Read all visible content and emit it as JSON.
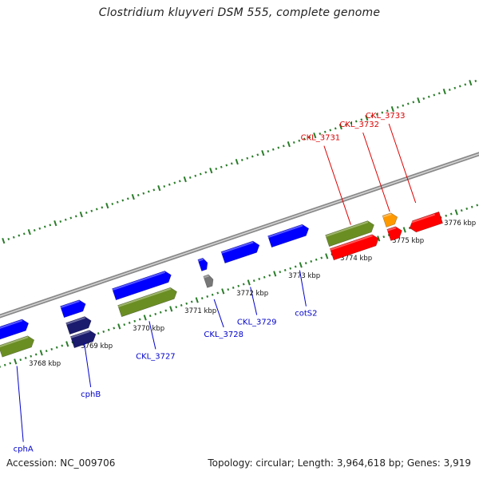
{
  "title": "Clostridium kluyveri DSM 555, complete genome",
  "footer": {
    "accession": "Accession: NC_009706",
    "summary": "Topology: circular; Length: 3,964,618 bp; Genes: 3,919"
  },
  "colors": {
    "forward_cds": "#0000ff",
    "reverse_cds_red": "#ff0000",
    "rna_green": "#6b8e23",
    "orange": "#ff9900",
    "gray": "#777777",
    "navy": "#1a1a6e",
    "tick": "#2a7d2a",
    "label_blue": "#0000cc",
    "label_red": "#dd0000"
  },
  "scale": {
    "unit": "kbp",
    "ticks": [
      {
        "pos": 3768,
        "label": "3768 kbp"
      },
      {
        "pos": 3769,
        "label": "3769 kbp"
      },
      {
        "pos": 3770,
        "label": "3770 kbp"
      },
      {
        "pos": 3771,
        "label": "3771 kbp"
      },
      {
        "pos": 3772,
        "label": "3772 kbp"
      },
      {
        "pos": 3773,
        "label": "3773 kbp"
      },
      {
        "pos": 3774,
        "label": "3774 kbp"
      },
      {
        "pos": 3775,
        "label": "3775 kbp"
      },
      {
        "pos": 3776,
        "label": "3776 kbp"
      }
    ]
  },
  "genes": [
    {
      "name": "cphA",
      "start": 3767.3,
      "end": 3767.95,
      "track": "fwd",
      "color": "forward_cds",
      "dir": "+"
    },
    {
      "name": "",
      "start": 3767.3,
      "end": 3767.95,
      "track": "rna",
      "color": "rna_green",
      "dir": "+"
    },
    {
      "name": "cphB",
      "start": 3768.6,
      "end": 3769.05,
      "track": "fwd",
      "color": "forward_cds",
      "dir": "+"
    },
    {
      "name": "",
      "start": 3768.6,
      "end": 3769.05,
      "track": "rna",
      "color": "navy",
      "dir": "+"
    },
    {
      "name": "",
      "start": 3768.6,
      "end": 3769.05,
      "track": "rev",
      "color": "navy",
      "dir": "+"
    },
    {
      "name": "CKL_3727",
      "start": 3769.6,
      "end": 3770.7,
      "track": "fwd",
      "color": "forward_cds",
      "dir": "+"
    },
    {
      "name": "",
      "start": 3769.6,
      "end": 3770.7,
      "track": "rna",
      "color": "rna_green",
      "dir": "+"
    },
    {
      "name": "CKL_3728",
      "start": 3771.25,
      "end": 3771.4,
      "track": "fwd",
      "color": "forward_cds",
      "dir": "+"
    },
    {
      "name": "",
      "start": 3771.25,
      "end": 3771.4,
      "track": "rna",
      "color": "gray",
      "dir": "+"
    },
    {
      "name": "CKL_3729",
      "start": 3771.7,
      "end": 3772.4,
      "track": "fwd",
      "color": "forward_cds",
      "dir": "+"
    },
    {
      "name": "cotS2",
      "start": 3772.6,
      "end": 3773.35,
      "track": "fwd",
      "color": "forward_cds",
      "dir": "+"
    },
    {
      "name": "",
      "start": 3773.6,
      "end": 3774.5,
      "track": "rna",
      "color": "rna_green",
      "dir": "+"
    },
    {
      "name": "CKL_3731",
      "start": 3773.6,
      "end": 3774.5,
      "track": "rev",
      "color": "reverse_cds_red",
      "dir": "+"
    },
    {
      "name": "CKL_3732",
      "start": 3774.7,
      "end": 3774.95,
      "track": "rev",
      "color": "reverse_cds_red",
      "dir": "+"
    },
    {
      "name": "",
      "start": 3774.7,
      "end": 3774.95,
      "track": "rna",
      "color": "orange",
      "dir": "+"
    },
    {
      "name": "CKL_3733",
      "start": 3775.1,
      "end": 3775.7,
      "track": "rev",
      "color": "reverse_cds_red",
      "dir": "-"
    }
  ],
  "labels": [
    {
      "text": "cphA",
      "gene_pos": 3767.5,
      "track": "fwd",
      "color": "label_blue"
    },
    {
      "text": "cphB",
      "gene_pos": 3768.8,
      "track": "fwd",
      "color": "label_blue"
    },
    {
      "text": "CKL_3727",
      "gene_pos": 3770.05,
      "track": "fwd",
      "color": "label_blue"
    },
    {
      "text": "CKL_3728",
      "gene_pos": 3771.3,
      "track": "fwd",
      "color": "label_blue"
    },
    {
      "text": "CKL_3729",
      "gene_pos": 3772.0,
      "track": "fwd",
      "color": "label_blue"
    },
    {
      "text": "cotS2",
      "gene_pos": 3772.95,
      "track": "fwd",
      "color": "label_blue"
    },
    {
      "text": "CKL_3731",
      "gene_pos": 3774.1,
      "track": "rev",
      "color": "label_red"
    },
    {
      "text": "CKL_3732",
      "gene_pos": 3774.85,
      "track": "rev",
      "color": "label_red"
    },
    {
      "text": "CKL_3733",
      "gene_pos": 3775.35,
      "track": "rev",
      "color": "label_red"
    }
  ]
}
